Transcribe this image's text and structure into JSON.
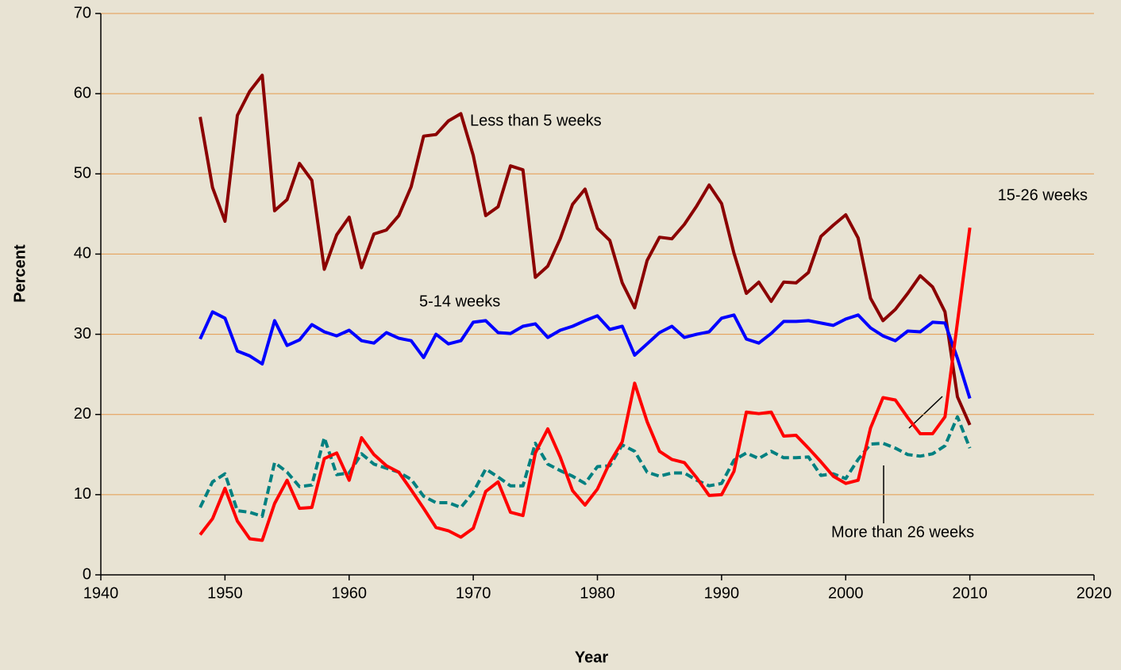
{
  "chart_data": {
    "type": "line",
    "x_label": "Year",
    "y_label": "Percent",
    "x": [
      1948,
      1949,
      1950,
      1951,
      1952,
      1953,
      1954,
      1955,
      1956,
      1957,
      1958,
      1959,
      1960,
      1961,
      1962,
      1963,
      1964,
      1965,
      1966,
      1967,
      1968,
      1969,
      1970,
      1971,
      1972,
      1973,
      1974,
      1975,
      1976,
      1977,
      1978,
      1979,
      1980,
      1981,
      1982,
      1983,
      1984,
      1985,
      1986,
      1987,
      1988,
      1989,
      1990,
      1991,
      1992,
      1993,
      1994,
      1995,
      1996,
      1997,
      1998,
      1999,
      2000,
      2001,
      2002,
      2003,
      2004,
      2005,
      2006,
      2007,
      2008,
      2009,
      2010
    ],
    "series": [
      {
        "name": "Less than 5 weeks",
        "color": "#8b0000",
        "dashed": false,
        "values": [
          57.1,
          48.3,
          44.1,
          57.3,
          60.3,
          62.3,
          45.4,
          46.8,
          51.3,
          49.2,
          38.1,
          42.4,
          44.6,
          38.3,
          42.5,
          43.0,
          44.8,
          48.4,
          54.7,
          54.9,
          56.6,
          57.5,
          52.3,
          44.8,
          45.9,
          51.0,
          50.5,
          37.1,
          38.5,
          41.9,
          46.2,
          48.1,
          43.2,
          41.7,
          36.4,
          33.3,
          39.2,
          42.1,
          41.9,
          43.7,
          46.0,
          48.6,
          46.3,
          40.1,
          35.1,
          36.5,
          34.1,
          36.5,
          36.4,
          37.7,
          42.2,
          43.6,
          44.9,
          42.0,
          34.5,
          31.7,
          33.1,
          35.1,
          37.3,
          35.9,
          32.8,
          22.2,
          18.7
        ]
      },
      {
        "name": "5-14 weeks",
        "color": "#0000ff",
        "dashed": false,
        "values": [
          29.4,
          32.8,
          32.0,
          27.9,
          27.3,
          26.3,
          31.7,
          28.6,
          29.3,
          31.2,
          30.3,
          29.8,
          30.5,
          29.2,
          28.9,
          30.2,
          29.5,
          29.2,
          27.1,
          30.0,
          28.8,
          29.2,
          31.5,
          31.7,
          30.2,
          30.1,
          31.0,
          31.3,
          29.6,
          30.5,
          31.0,
          31.7,
          32.3,
          30.6,
          31.0,
          27.4,
          28.8,
          30.2,
          31.0,
          29.6,
          30.0,
          30.3,
          32.0,
          32.4,
          29.4,
          28.9,
          30.1,
          31.6,
          31.6,
          31.7,
          31.4,
          31.1,
          31.9,
          32.4,
          30.8,
          29.8,
          29.2,
          30.4,
          30.3,
          31.5,
          31.4,
          27.0,
          22.0
        ]
      },
      {
        "name": "15-26 weeks",
        "color": "#008080",
        "dashed": true,
        "values": [
          8.4,
          11.6,
          12.6,
          8.0,
          7.8,
          7.3,
          14.0,
          12.8,
          11.0,
          11.2,
          17.1,
          12.5,
          12.7,
          15.1,
          13.8,
          13.3,
          12.8,
          11.9,
          9.8,
          9.0,
          9.0,
          8.4,
          10.3,
          13.2,
          12.2,
          11.1,
          11.1,
          16.4,
          13.8,
          13.0,
          12.3,
          11.4,
          13.5,
          13.6,
          16.2,
          15.4,
          12.8,
          12.3,
          12.7,
          12.7,
          11.8,
          11.1,
          11.4,
          14.3,
          15.2,
          14.5,
          15.4,
          14.6,
          14.6,
          14.7,
          12.4,
          12.6,
          12.0,
          14.4,
          16.3,
          16.4,
          15.8,
          15.0,
          14.8,
          15.1,
          16.1,
          19.7,
          15.8
        ]
      },
      {
        "name": "More than 26 weeks",
        "color": "#ff0000",
        "dashed": false,
        "values": [
          5.0,
          7.0,
          10.8,
          6.7,
          4.5,
          4.3,
          8.9,
          11.8,
          8.3,
          8.4,
          14.5,
          15.2,
          11.8,
          17.1,
          15.0,
          13.6,
          12.8,
          10.6,
          8.3,
          5.9,
          5.5,
          4.7,
          5.8,
          10.4,
          11.6,
          7.8,
          7.4,
          15.2,
          18.2,
          14.7,
          10.5,
          8.7,
          10.7,
          14.0,
          16.6,
          23.9,
          19.1,
          15.4,
          14.4,
          14.0,
          12.1,
          9.9,
          10.0,
          12.9,
          20.3,
          20.1,
          20.3,
          17.3,
          17.4,
          15.8,
          14.1,
          12.3,
          11.4,
          11.8,
          18.3,
          22.1,
          21.8,
          19.6,
          17.6,
          17.6,
          19.7,
          31.5,
          43.3
        ]
      }
    ],
    "xlim": [
      1940,
      2020
    ],
    "xticks": [
      1940,
      1950,
      1960,
      1970,
      1980,
      1990,
      2000,
      2010,
      2020
    ],
    "ylim": [
      0,
      70
    ],
    "yticks": [
      0,
      10,
      20,
      30,
      40,
      50,
      60,
      70
    ],
    "grid": true
  }
}
